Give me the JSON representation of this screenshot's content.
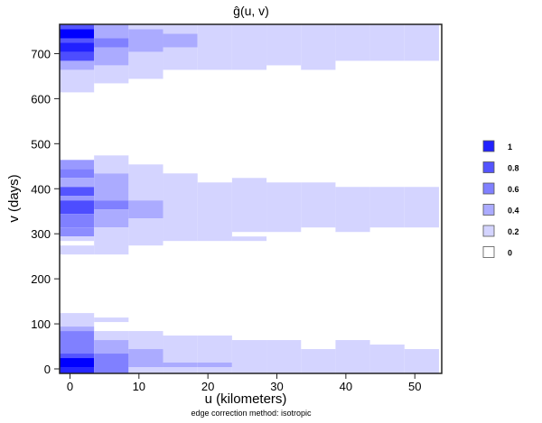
{
  "chart_data": {
    "type": "heatmap",
    "title": "ĝ(u, v)",
    "xlabel": "u (kilometers)",
    "ylabel": "v (days)",
    "subtitle": "edge correction method: isotropic",
    "xlim": [
      -1.5,
      53.9
    ],
    "ylim": [
      -10,
      765
    ],
    "xticks": [
      0,
      10,
      20,
      30,
      40,
      50
    ],
    "yticks": [
      0,
      100,
      200,
      300,
      400,
      500,
      600,
      700
    ],
    "bin_width_u": 5,
    "bin_start_u": -1.5,
    "legend": {
      "position": "right",
      "entries": [
        {
          "label": "1",
          "level": 0.87
        },
        {
          "label": "0.8",
          "level": 0.67
        },
        {
          "label": "0.6",
          "level": 0.5
        },
        {
          "label": "0.4",
          "level": 0.33
        },
        {
          "label": "0.2",
          "level": 0.17
        },
        {
          "label": "0",
          "level": 0
        }
      ]
    },
    "columns": [
      [
        [
          754,
          764,
          0.67
        ],
        [
          734,
          754,
          1.0
        ],
        [
          724,
          734,
          0.67
        ],
        [
          704,
          724,
          0.87
        ],
        [
          684,
          704,
          0.7
        ],
        [
          664,
          684,
          0.33
        ],
        [
          614,
          664,
          0.17
        ],
        [
          444,
          464,
          0.4
        ],
        [
          424,
          444,
          0.5
        ],
        [
          404,
          424,
          0.33
        ],
        [
          384,
          404,
          0.67
        ],
        [
          374,
          384,
          0.4
        ],
        [
          344,
          374,
          0.7
        ],
        [
          314,
          344,
          0.5
        ],
        [
          294,
          314,
          0.45
        ],
        [
          284,
          294,
          0.17
        ],
        [
          254,
          274,
          0.17
        ],
        [
          94,
          124,
          0.17
        ],
        [
          84,
          94,
          0.33
        ],
        [
          34,
          84,
          0.5
        ],
        [
          24,
          34,
          0.67
        ],
        [
          4,
          24,
          1.0
        ],
        [
          -10,
          4,
          0.85
        ]
      ],
      [
        [
          734,
          764,
          0.33
        ],
        [
          714,
          734,
          0.5
        ],
        [
          674,
          714,
          0.33
        ],
        [
          634,
          674,
          0.17
        ],
        [
          434,
          474,
          0.17
        ],
        [
          374,
          434,
          0.33
        ],
        [
          354,
          374,
          0.5
        ],
        [
          314,
          354,
          0.33
        ],
        [
          254,
          314,
          0.17
        ],
        [
          104,
          114,
          0.17
        ],
        [
          64,
          84,
          0.17
        ],
        [
          34,
          64,
          0.33
        ],
        [
          -10,
          34,
          0.5
        ]
      ],
      [
        [
          754,
          764,
          0.17
        ],
        [
          704,
          754,
          0.33
        ],
        [
          644,
          704,
          0.17
        ],
        [
          374,
          454,
          0.17
        ],
        [
          334,
          374,
          0.33
        ],
        [
          274,
          334,
          0.17
        ],
        [
          44,
          84,
          0.17
        ],
        [
          4,
          44,
          0.33
        ],
        [
          -10,
          4,
          0.17
        ]
      ],
      [
        [
          744,
          764,
          0.17
        ],
        [
          714,
          744,
          0.33
        ],
        [
          664,
          714,
          0.17
        ],
        [
          284,
          434,
          0.17
        ],
        [
          14,
          74,
          0.17
        ],
        [
          4,
          14,
          0.33
        ],
        [
          -10,
          4,
          0.17
        ]
      ],
      [
        [
          664,
          764,
          0.17
        ],
        [
          284,
          414,
          0.17
        ],
        [
          14,
          74,
          0.17
        ],
        [
          4,
          14,
          0.33
        ],
        [
          -10,
          4,
          0.17
        ]
      ],
      [
        [
          664,
          764,
          0.17
        ],
        [
          304,
          424,
          0.17
        ],
        [
          284,
          294,
          0.17
        ],
        [
          -10,
          64,
          0.17
        ]
      ],
      [
        [
          674,
          764,
          0.17
        ],
        [
          304,
          414,
          0.17
        ],
        [
          -10,
          64,
          0.17
        ]
      ],
      [
        [
          664,
          764,
          0.17
        ],
        [
          314,
          414,
          0.17
        ],
        [
          -10,
          44,
          0.17
        ]
      ],
      [
        [
          684,
          764,
          0.17
        ],
        [
          304,
          404,
          0.17
        ],
        [
          -10,
          64,
          0.17
        ]
      ],
      [
        [
          684,
          764,
          0.17
        ],
        [
          314,
          404,
          0.17
        ],
        [
          -10,
          54,
          0.17
        ]
      ],
      [
        [
          684,
          764,
          0.17
        ],
        [
          314,
          404,
          0.17
        ],
        [
          -10,
          44,
          0.17
        ]
      ]
    ]
  }
}
